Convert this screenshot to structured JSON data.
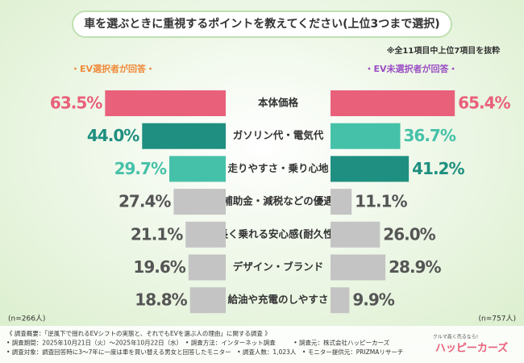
{
  "chart_data": {
    "type": "butterfly-bar",
    "title": "車を選ぶときに重視するポイントを教えてください(上位3つまで選択)",
    "note": "※全11項目中上位7項目を抜粋",
    "categories": [
      "本体価格",
      "ガソリン代・電気代",
      "走りやすさ・乗り心地",
      "補助金・減税などの優遇",
      "長く乗れる安心感(耐久性)",
      "デザイン・ブランド",
      "給油や充電のしやすさ"
    ],
    "xlim": [
      0,
      70
    ],
    "series": [
      {
        "name": "・EV選択者が回答・",
        "color": "#f08a3a",
        "sample": "(n=266人)",
        "values": [
          63.5,
          44.0,
          29.7,
          27.4,
          21.1,
          19.6,
          18.8
        ],
        "value_labels": [
          "63.5%",
          "44.0%",
          "29.7%",
          "27.4%",
          "21.1%",
          "19.6%",
          "18.8%"
        ],
        "colors": [
          "#e9607a",
          "#1e8f80",
          "#46c1a9",
          "#c4c4c4",
          "#c4c4c4",
          "#c4c4c4",
          "#c4c4c4"
        ],
        "label_colors": [
          "#e9607a",
          "#1e8f80",
          "#46c1a9",
          "#555555",
          "#555555",
          "#555555",
          "#555555"
        ]
      },
      {
        "name": "・EV未選択者が回答・",
        "color": "#9a4fc4",
        "sample": "(n=757人)",
        "values": [
          65.4,
          36.7,
          41.2,
          11.1,
          26.0,
          28.9,
          9.9
        ],
        "value_labels": [
          "65.4%",
          "36.7%",
          "41.2%",
          "11.1%",
          "26.0%",
          "28.9%",
          "9.9%"
        ],
        "colors": [
          "#e9607a",
          "#46c1a9",
          "#1e8f80",
          "#c4c4c4",
          "#c4c4c4",
          "#c4c4c4",
          "#c4c4c4"
        ],
        "label_colors": [
          "#e9607a",
          "#46c1a9",
          "#1e8f80",
          "#555555",
          "#555555",
          "#555555",
          "#555555"
        ]
      }
    ]
  },
  "footer": [
    "《 調査概要：「逆風下で揺れるEVシフトの実態と、それでもEVを選ぶ人の理由」に関する調査 》",
    "• 調査期間：2025年10月21日（火）～2025年10月22日（水）　• 調査方法：インターネット調査　　　• 調査元：株式会社ハッピーカーズ",
    "• 調査対象：調査回答時に3～7年に一度は車を買い替える男女と回答したモニター　• 調査人数：1,023人　• モニター提供元：PRIZMAリサーチ"
  ],
  "logo": {
    "tagline": "クルマ高く売るなら!",
    "name": "ハッピーカーズ"
  }
}
